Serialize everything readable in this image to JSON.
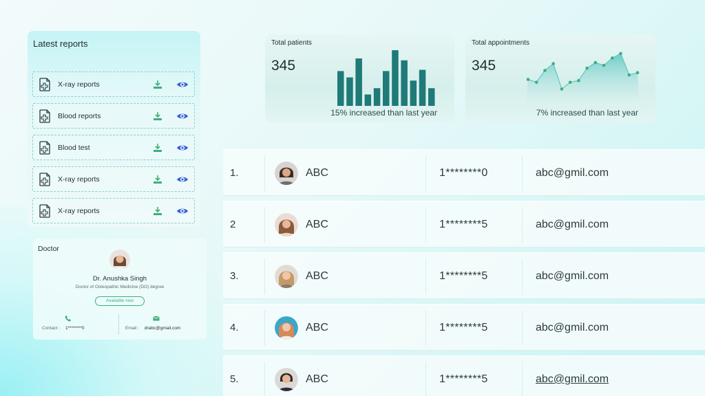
{
  "reports": {
    "title": "Latest reports",
    "items": [
      {
        "label": "X-ray reports"
      },
      {
        "label": "Blood reports"
      },
      {
        "label": "Blood test"
      },
      {
        "label": "X-ray reports"
      },
      {
        "label": "X-ray reports"
      }
    ]
  },
  "doctor": {
    "title": "Doctor",
    "name": "Dr. Anushka Singh",
    "degree": "Doctor of Osteopathic Medicine (DO) degree",
    "status": "Available now",
    "contact_label": "Contact :",
    "contact_value": "1********0",
    "email_label": "Email :",
    "email_value": "drabc@gmail.com"
  },
  "stats": {
    "patients": {
      "title": "Total patients",
      "value": "345",
      "subtitle": "15% increased than last year",
      "bars": [
        55,
        45,
        75,
        18,
        28,
        55,
        88,
        72,
        40,
        57,
        28
      ]
    },
    "appointments": {
      "title": "Total appointments",
      "value": "345",
      "subtitle": "7% increased than last year",
      "points": [
        42,
        37,
        58,
        70,
        25,
        37,
        40,
        62,
        72,
        67,
        80,
        88,
        50,
        54
      ]
    }
  },
  "colors": {
    "bar": "#1f7a78",
    "area_top": "#5fc7c3",
    "point": "#3fae7a",
    "accent_green": "#3fae7a",
    "eye_blue": "#3d63d8"
  },
  "table": {
    "rows": [
      {
        "num": "1.",
        "name": "ABC",
        "phone": "1********0",
        "email": "abc@gmil.com"
      },
      {
        "num": "2",
        "name": "ABC",
        "phone": "1********5",
        "email": "abc@gmil.com"
      },
      {
        "num": "3.",
        "name": "ABC",
        "phone": "1********5",
        "email": "abc@gmil.com"
      },
      {
        "num": "4.",
        "name": "ABC",
        "phone": "1********5",
        "email": "abc@gmil.com"
      },
      {
        "num": "5.",
        "name": "ABC",
        "phone": "1********5",
        "email": "abc@gmil.com"
      }
    ]
  }
}
